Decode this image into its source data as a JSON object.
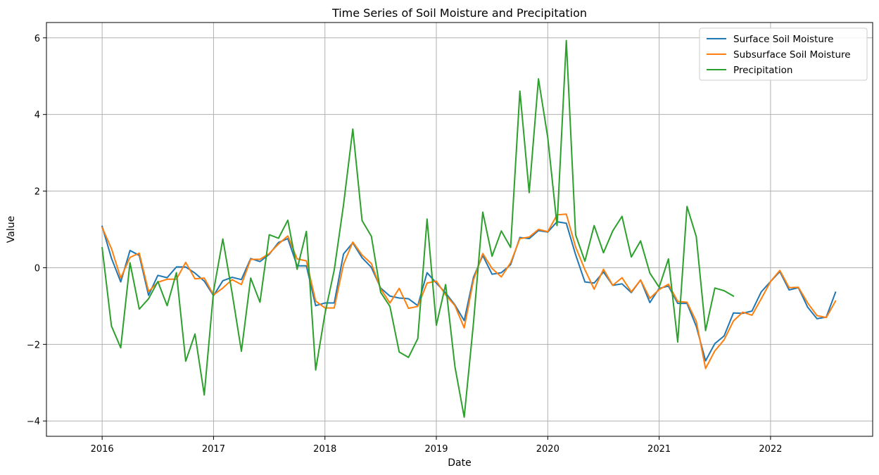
{
  "chart_data": {
    "type": "line",
    "title": "Time Series of Soil Moisture and Precipitation",
    "xlabel": "Date",
    "ylabel": "Value",
    "x_start": "2016-01",
    "x_ticks": [
      "2016",
      "2017",
      "2018",
      "2019",
      "2020",
      "2021",
      "2022"
    ],
    "xlim": [
      "2015-07",
      "2022-12"
    ],
    "y_ticks": [
      -4,
      -2,
      0,
      2,
      4,
      6
    ],
    "ylim": [
      -4.4,
      6.4
    ],
    "grid": true,
    "legend_position": "top-right",
    "series": [
      {
        "name": "Surface Soil Moisture",
        "color": "#1f77b4",
        "values": [
          1.08,
          0.25,
          -0.37,
          0.45,
          0.32,
          -0.72,
          -0.2,
          -0.26,
          0.02,
          0.02,
          -0.14,
          -0.35,
          -0.73,
          -0.34,
          -0.25,
          -0.31,
          0.24,
          0.16,
          0.35,
          0.66,
          0.76,
          0.05,
          0.05,
          -0.99,
          -0.92,
          -0.92,
          0.36,
          0.65,
          0.26,
          0.01,
          -0.53,
          -0.74,
          -0.79,
          -0.81,
          -0.99,
          -0.13,
          -0.4,
          -0.66,
          -0.97,
          -1.38,
          -0.25,
          0.32,
          -0.17,
          -0.13,
          0.08,
          0.79,
          0.76,
          0.97,
          0.93,
          1.2,
          1.16,
          0.34,
          -0.37,
          -0.4,
          -0.11,
          -0.46,
          -0.42,
          -0.65,
          -0.32,
          -0.91,
          -0.54,
          -0.48,
          -0.93,
          -0.93,
          -1.53,
          -2.43,
          -1.98,
          -1.78,
          -1.18,
          -1.19,
          -1.13,
          -0.63,
          -0.36,
          -0.1,
          -0.58,
          -0.52,
          -1.03,
          -1.33,
          -1.29,
          -0.64
        ]
      },
      {
        "name": "Subsurface Soil Moisture",
        "color": "#ff7f0e",
        "values": [
          1.05,
          0.5,
          -0.27,
          0.27,
          0.38,
          -0.62,
          -0.38,
          -0.3,
          -0.3,
          0.14,
          -0.29,
          -0.27,
          -0.71,
          -0.53,
          -0.31,
          -0.44,
          0.22,
          0.22,
          0.37,
          0.62,
          0.83,
          0.23,
          0.18,
          -0.87,
          -1.05,
          -1.05,
          0.09,
          0.67,
          0.33,
          0.11,
          -0.55,
          -0.92,
          -0.54,
          -1.06,
          -1.01,
          -0.4,
          -0.35,
          -0.71,
          -0.99,
          -1.57,
          -0.32,
          0.37,
          -0.02,
          -0.24,
          0.13,
          0.76,
          0.8,
          1.0,
          0.94,
          1.38,
          1.4,
          0.54,
          -0.05,
          -0.56,
          -0.04,
          -0.46,
          -0.26,
          -0.63,
          -0.32,
          -0.8,
          -0.57,
          -0.43,
          -0.88,
          -0.9,
          -1.4,
          -2.63,
          -2.17,
          -1.88,
          -1.39,
          -1.16,
          -1.24,
          -0.81,
          -0.36,
          -0.07,
          -0.52,
          -0.51,
          -0.92,
          -1.25,
          -1.3,
          -0.87
        ]
      },
      {
        "name": "Precipitation",
        "color": "#2ca02c",
        "values": [
          0.52,
          -1.52,
          -2.09,
          0.13,
          -1.08,
          -0.81,
          -0.36,
          -0.99,
          -0.13,
          -2.44,
          -1.73,
          -3.32,
          -0.61,
          0.75,
          -0.66,
          -2.18,
          -0.27,
          -0.9,
          0.86,
          0.77,
          1.24,
          -0.04,
          0.95,
          -2.67,
          -1.2,
          -0.06,
          1.64,
          3.62,
          1.23,
          0.82,
          -0.64,
          -1.01,
          -2.2,
          -2.34,
          -1.85,
          1.27,
          -1.5,
          -0.44,
          -2.58,
          -3.9,
          -1.44,
          1.45,
          0.3,
          0.96,
          0.53,
          4.61,
          1.96,
          4.93,
          3.4,
          1.1,
          5.93,
          0.86,
          0.17,
          1.1,
          0.39,
          0.96,
          1.34,
          0.28,
          0.7,
          -0.14,
          -0.51,
          0.23,
          -1.94,
          1.6,
          0.81,
          -1.64,
          -0.53,
          -0.6,
          -0.74
        ]
      }
    ]
  }
}
